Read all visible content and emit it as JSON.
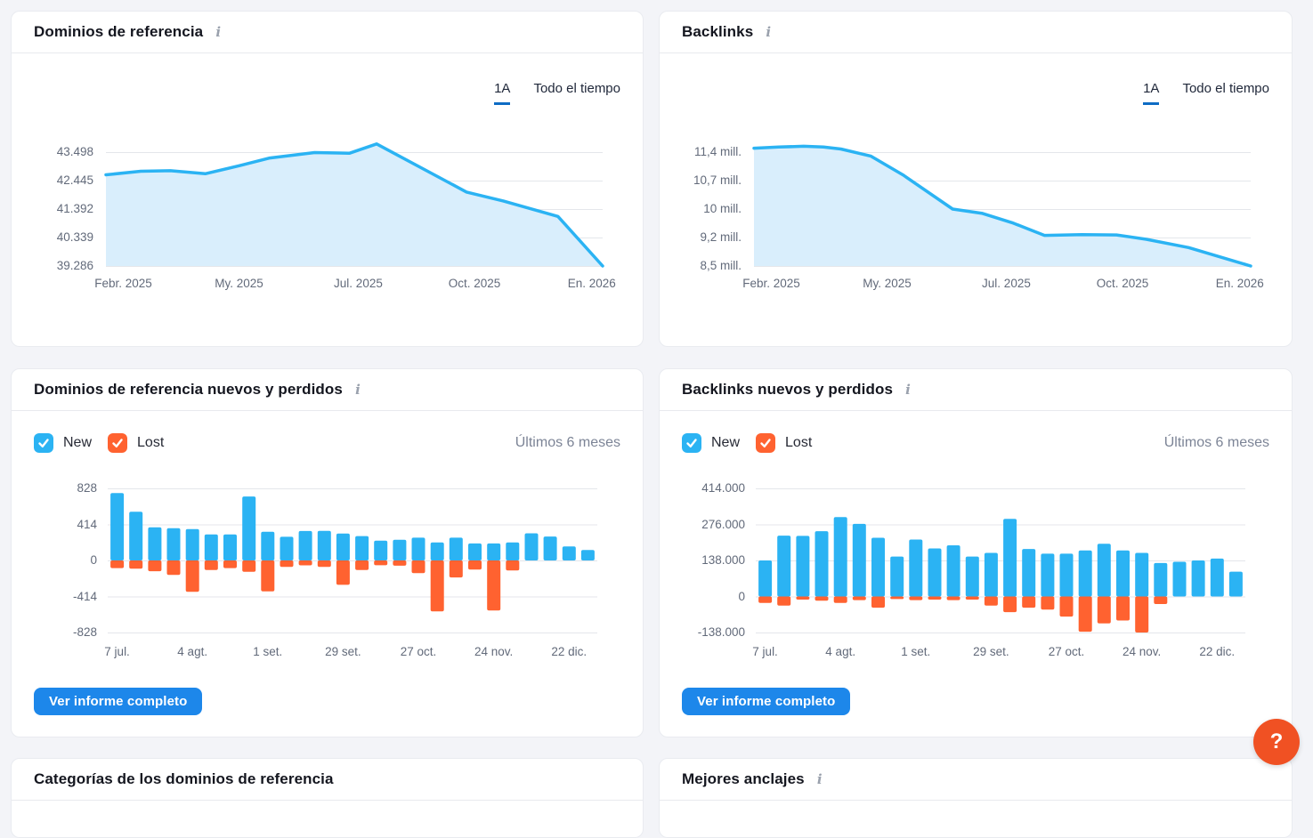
{
  "colors": {
    "line_blue": "#2bb3f3",
    "area_fill": "#d9eefc",
    "bar_new": "#2bb3f3",
    "bar_lost": "#ff6230",
    "grid": "#e4e6eb",
    "accent_button": "#1d87ea",
    "tab_underline": "#0e6cc4",
    "help_orange": "#f05123"
  },
  "cards": {
    "referring_domains": {
      "title": "Dominios de referencia",
      "tabs": {
        "one_year": "1A",
        "all_time": "Todo el tiempo"
      }
    },
    "backlinks": {
      "title": "Backlinks",
      "tabs": {
        "one_year": "1A",
        "all_time": "Todo el tiempo"
      }
    },
    "referring_domains_new_lost": {
      "title": "Dominios de referencia nuevos y perdidos",
      "legend": {
        "new": "New",
        "lost": "Lost"
      },
      "range_label": "Últimos 6 meses",
      "button": "Ver informe completo"
    },
    "backlinks_new_lost": {
      "title": "Backlinks nuevos y perdidos",
      "legend": {
        "new": "New",
        "lost": "Lost"
      },
      "range_label": "Últimos 6 meses",
      "button": "Ver informe completo"
    },
    "categories": {
      "title": "Categorías de los dominios de referencia"
    },
    "top_anchors": {
      "title": "Mejores anclajes"
    }
  },
  "help_button": {
    "label": "?"
  },
  "chart_data": [
    {
      "type": "area",
      "title": "Dominios de referencia",
      "selected_range": "1A",
      "x_tick_labels": [
        "Febr. 2025",
        "My. 2025",
        "Jul. 2025",
        "Oct. 2025",
        "En. 2026"
      ],
      "y_tick_labels": [
        "43.498",
        "42.445",
        "41.392",
        "40.339",
        "39.286"
      ],
      "y_ticks": [
        43498,
        42445,
        41392,
        40339,
        39286
      ],
      "grid": true,
      "points": [
        [
          0.0,
          42660
        ],
        [
          0.07,
          42790
        ],
        [
          0.13,
          42810
        ],
        [
          0.2,
          42700
        ],
        [
          0.27,
          43000
        ],
        [
          0.33,
          43280
        ],
        [
          0.42,
          43480
        ],
        [
          0.47,
          43465
        ],
        [
          0.49,
          43455
        ],
        [
          0.545,
          43800
        ],
        [
          0.726,
          42020
        ],
        [
          0.8,
          41690
        ],
        [
          0.91,
          41120
        ],
        [
          1.0,
          39286
        ]
      ]
    },
    {
      "type": "area",
      "title": "Backlinks",
      "selected_range": "1A",
      "x_tick_labels": [
        "Febr. 2025",
        "My. 2025",
        "Jul. 2025",
        "Oct. 2025",
        "En. 2026"
      ],
      "y_tick_labels": [
        "11,4 mill.",
        "10,7 mill.",
        "10 mill.",
        "9,2 mill.",
        "8,5 mill."
      ],
      "y_ticks": [
        11400000,
        10700000,
        10000000,
        9200000,
        8500000
      ],
      "grid": true,
      "points": [
        [
          0.0,
          11500000
        ],
        [
          0.05,
          11530000
        ],
        [
          0.1,
          11550000
        ],
        [
          0.14,
          11530000
        ],
        [
          0.175,
          11480000
        ],
        [
          0.235,
          11300000
        ],
        [
          0.3,
          10820000
        ],
        [
          0.4,
          9950000
        ],
        [
          0.46,
          9840000
        ],
        [
          0.52,
          9600000
        ],
        [
          0.585,
          9280000
        ],
        [
          0.66,
          9300000
        ],
        [
          0.73,
          9290000
        ],
        [
          0.79,
          9180000
        ],
        [
          0.875,
          8970000
        ],
        [
          1.0,
          8500000
        ]
      ]
    },
    {
      "type": "bar",
      "title": "Dominios de referencia nuevos y perdidos",
      "range": "Últimos 6 meses",
      "x_tick_labels": [
        "7 jul.",
        "4 agt.",
        "1 set.",
        "29 set.",
        "27 oct.",
        "24 nov.",
        "22 dic."
      ],
      "label_every": 4,
      "y_tick_labels": [
        "828",
        "414",
        "0",
        "-414",
        "-828"
      ],
      "y_ticks": [
        828,
        414,
        0,
        -414,
        -828
      ],
      "grid": true,
      "series": [
        {
          "name": "New",
          "values": [
            775,
            560,
            380,
            370,
            360,
            300,
            300,
            735,
            330,
            272,
            338,
            340,
            310,
            280,
            228,
            238,
            262,
            208,
            262,
            195,
            195,
            208,
            312,
            275,
            160,
            120
          ]
        },
        {
          "name": "Lost",
          "values": [
            -88,
            -95,
            -124,
            -166,
            -360,
            -110,
            -88,
            -130,
            -355,
            -75,
            -56,
            -75,
            -280,
            -110,
            -55,
            -60,
            -145,
            -585,
            -195,
            -105,
            -575,
            -115,
            0,
            0,
            0,
            0
          ]
        }
      ]
    },
    {
      "type": "bar",
      "title": "Backlinks nuevos y perdidos",
      "range": "Últimos 6 meses",
      "x_tick_labels": [
        "7 jul.",
        "4 agt.",
        "1 set.",
        "29 set.",
        "27 oct.",
        "24 nov.",
        "22 dic."
      ],
      "label_every": 4,
      "y_tick_labels": [
        "414.000",
        "276.000",
        "138.000",
        "0",
        "-138.000"
      ],
      "y_ticks": [
        414000,
        276000,
        138000,
        0,
        -138000
      ],
      "grid": true,
      "series": [
        {
          "name": "New",
          "values": [
            138000,
            233000,
            232000,
            250000,
            304000,
            278000,
            225000,
            153000,
            218000,
            184000,
            196000,
            153000,
            167000,
            297000,
            182000,
            164000,
            164000,
            176000,
            202000,
            176000,
            167000,
            128000,
            133000,
            138000,
            145000,
            95000
          ]
        },
        {
          "name": "Lost",
          "values": [
            -25000,
            -35000,
            -12000,
            -16000,
            -25000,
            -14000,
            -43000,
            -10000,
            -14000,
            -12000,
            -14000,
            -12000,
            -35000,
            -60000,
            -43000,
            -50000,
            -77000,
            -135000,
            -103000,
            -92000,
            -138000,
            -29000,
            0,
            0,
            0,
            0
          ]
        }
      ]
    }
  ]
}
